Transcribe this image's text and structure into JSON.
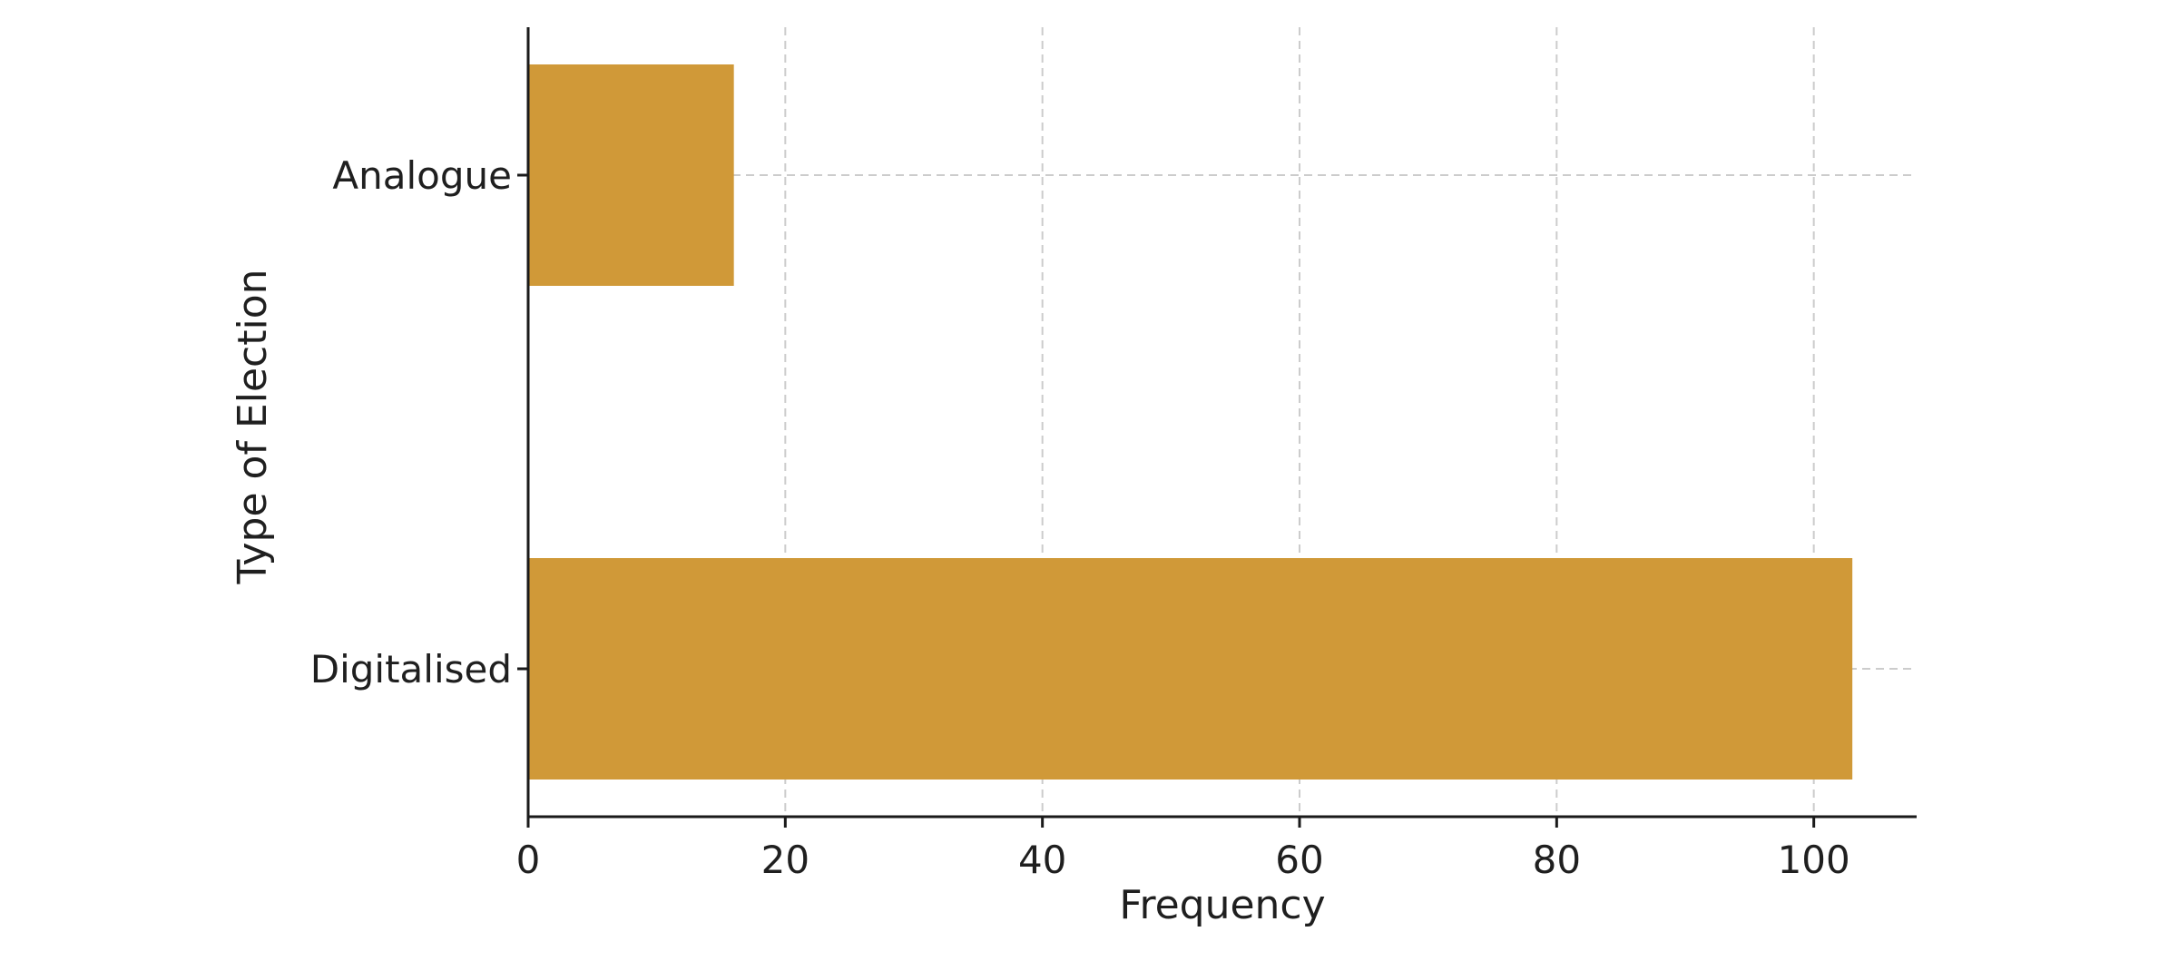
{
  "chart_data": {
    "type": "bar",
    "orientation": "horizontal",
    "categories": [
      "Analogue",
      "Digitalised"
    ],
    "values": [
      16,
      103
    ],
    "title": "",
    "xlabel": "Frequency",
    "ylabel": "Type of Election",
    "xlim": [
      0,
      108
    ],
    "xticks": [
      0,
      20,
      40,
      60,
      80,
      100
    ],
    "grid": true,
    "bar_color": "#D09938"
  }
}
